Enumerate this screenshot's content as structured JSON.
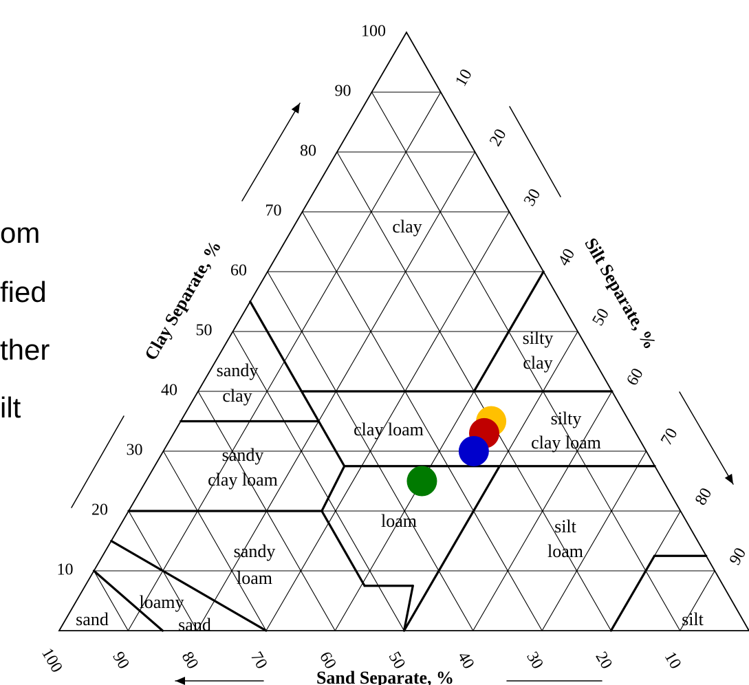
{
  "left_text_fragments": [
    "om",
    "fied",
    "ther",
    "ilt"
  ],
  "triangle": {
    "left_ticks": [
      "100",
      "90",
      "80",
      "70",
      "60",
      "50",
      "40",
      "30",
      "20",
      "10"
    ],
    "right_ticks": [
      "10",
      "20",
      "30",
      "40",
      "50",
      "60",
      "70",
      "80",
      "90"
    ],
    "bottom_ticks": [
      "100",
      "90",
      "80",
      "70",
      "60",
      "50",
      "40",
      "30",
      "20",
      "10"
    ],
    "axis_titles": {
      "clay": "Clay Separate, %",
      "silt": "Silt Separate, %",
      "sand": "Sand Separate, %"
    },
    "class_labels": {
      "clay": "clay",
      "silty_clay_1": "silty",
      "silty_clay_2": "clay",
      "sandy_clay_1": "sandy",
      "sandy_clay_2": "clay",
      "clay_loam": "clay loam",
      "silty_clay_loam_1": "silty",
      "silty_clay_loam_2": "clay loam",
      "sandy_clay_loam_1": "sandy",
      "sandy_clay_loam_2": "clay loam",
      "loam": "loam",
      "silt_loam_1": "silt",
      "silt_loam_2": "loam",
      "sandy_loam_1": "sandy",
      "sandy_loam_2": "loam",
      "loamy_sand_1": "loamy",
      "loamy_sand_2": "sand",
      "sand": "sand",
      "silt": "silt"
    },
    "points": [
      {
        "color": "#ffc000",
        "clay": 35,
        "silt": 45,
        "sand": 20
      },
      {
        "color": "#c00000",
        "clay": 33,
        "silt": 45,
        "sand": 22
      },
      {
        "color": "#0000cc",
        "clay": 30,
        "silt": 45,
        "sand": 25
      },
      {
        "color": "#007a00",
        "clay": 25,
        "silt": 40,
        "sand": 35
      }
    ]
  }
}
